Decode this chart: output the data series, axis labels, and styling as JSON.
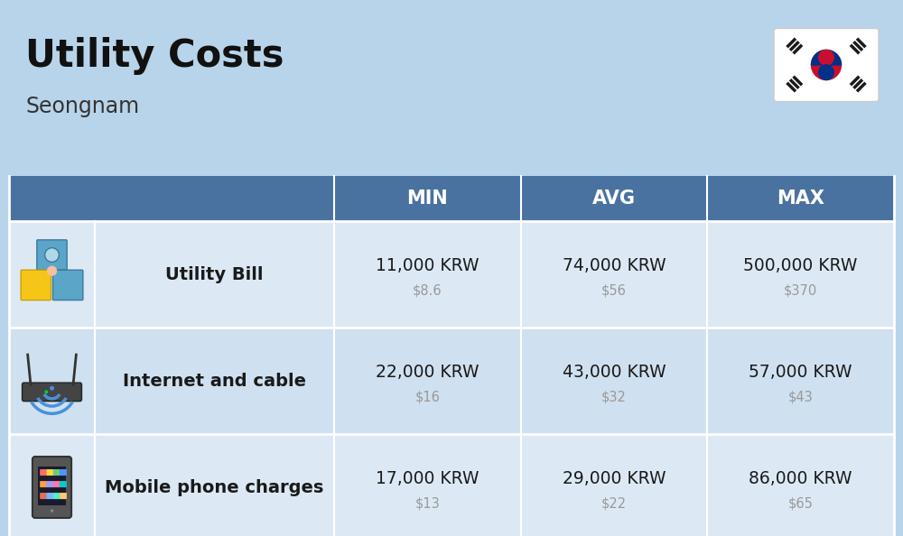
{
  "title": "Utility Costs",
  "subtitle": "Seongnam",
  "background_color": "#b8d4ea",
  "header_color": "#4a72a0",
  "header_text_color": "#ffffff",
  "row_color_light": "#dce9f5",
  "row_color_alt": "#cfe0f0",
  "cell_text_color": "#1a1a1a",
  "usd_text_color": "#999999",
  "col_headers": [
    "MIN",
    "AVG",
    "MAX"
  ],
  "rows": [
    {
      "label": "Utility Bill",
      "values_krw": [
        "11,000 KRW",
        "74,000 KRW",
        "500,000 KRW"
      ],
      "values_usd": [
        "$8.6",
        "$56",
        "$370"
      ]
    },
    {
      "label": "Internet and cable",
      "values_krw": [
        "22,000 KRW",
        "43,000 KRW",
        "57,000 KRW"
      ],
      "values_usd": [
        "$16",
        "$32",
        "$43"
      ]
    },
    {
      "label": "Mobile phone charges",
      "values_krw": [
        "17,000 KRW",
        "29,000 KRW",
        "86,000 KRW"
      ],
      "values_usd": [
        "$13",
        "$22",
        "$65"
      ]
    }
  ]
}
